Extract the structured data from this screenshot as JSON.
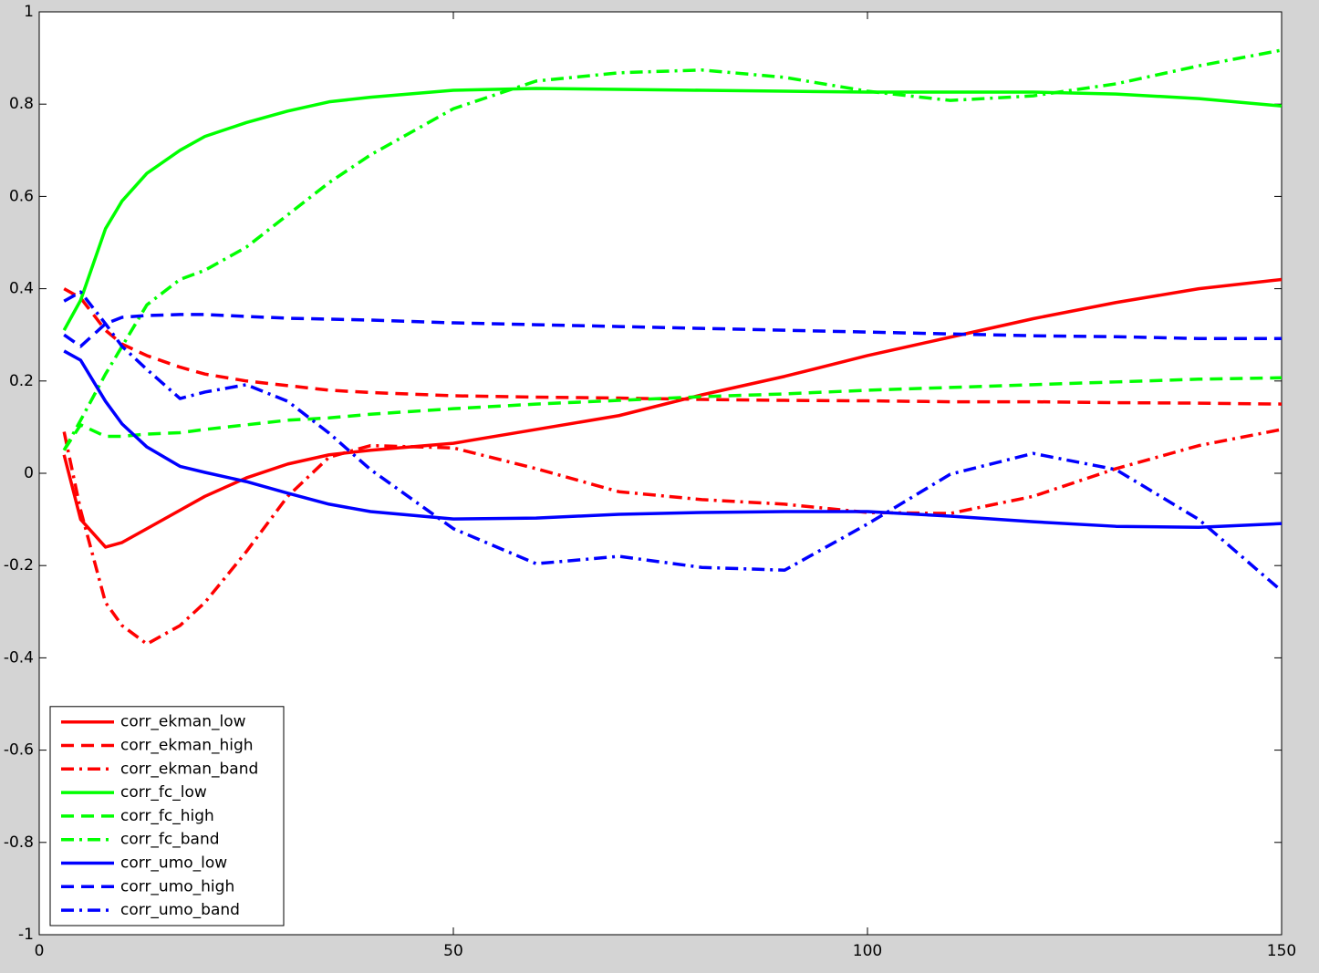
{
  "chart_data": {
    "type": "line",
    "x": [
      3,
      5,
      8,
      10,
      13,
      17,
      20,
      25,
      30,
      35,
      40,
      50,
      60,
      70,
      80,
      90,
      100,
      110,
      120,
      130,
      140,
      150
    ],
    "xlim": [
      0,
      150
    ],
    "xticks": [
      0,
      50,
      100,
      150
    ],
    "ylim": [
      -1,
      1
    ],
    "yticks": [
      -1,
      -0.8,
      -0.6,
      -0.4,
      -0.2,
      0,
      0.2,
      0.4,
      0.6,
      0.8,
      1
    ],
    "legend": "lower left",
    "series": [
      {
        "name": "corr_ekman_low",
        "color": "#ff0000",
        "linestyle": "solid",
        "values": [
          0.04,
          -0.1,
          -0.16,
          -0.15,
          -0.12,
          -0.08,
          -0.05,
          -0.01,
          0.02,
          0.04,
          0.05,
          0.065,
          0.095,
          0.125,
          0.17,
          0.21,
          0.255,
          0.295,
          0.335,
          0.37,
          0.4,
          0.42
        ]
      },
      {
        "name": "corr_ekman_high",
        "color": "#ff0000",
        "linestyle": "dashed",
        "values": [
          0.4,
          0.38,
          0.31,
          0.28,
          0.255,
          0.23,
          0.215,
          0.2,
          0.19,
          0.18,
          0.175,
          0.168,
          0.165,
          0.163,
          0.16,
          0.158,
          0.157,
          0.155,
          0.155,
          0.153,
          0.152,
          0.15
        ]
      },
      {
        "name": "corr_ekman_band",
        "color": "#ff0000",
        "linestyle": "dashdot",
        "values": [
          0.09,
          -0.08,
          -0.28,
          -0.33,
          -0.37,
          -0.33,
          -0.28,
          -0.17,
          -0.05,
          0.035,
          0.06,
          0.055,
          0.01,
          -0.04,
          -0.057,
          -0.067,
          -0.085,
          -0.087,
          -0.05,
          0.01,
          0.06,
          0.095
        ]
      },
      {
        "name": "corr_fc_low",
        "color": "#00ff00",
        "linestyle": "solid",
        "values": [
          0.31,
          0.375,
          0.53,
          0.59,
          0.65,
          0.7,
          0.73,
          0.76,
          0.785,
          0.805,
          0.815,
          0.83,
          0.834,
          0.832,
          0.83,
          0.828,
          0.826,
          0.826,
          0.826,
          0.822,
          0.812,
          0.796
        ]
      },
      {
        "name": "corr_fc_high",
        "color": "#00ff00",
        "linestyle": "dashed",
        "values": [
          0.05,
          0.105,
          0.08,
          0.08,
          0.085,
          0.088,
          0.095,
          0.105,
          0.115,
          0.12,
          0.128,
          0.14,
          0.15,
          0.158,
          0.166,
          0.172,
          0.18,
          0.186,
          0.192,
          0.198,
          0.204,
          0.207
        ]
      },
      {
        "name": "corr_fc_band",
        "color": "#00ff00",
        "linestyle": "dashdot",
        "values": [
          0.05,
          0.115,
          0.215,
          0.275,
          0.365,
          0.42,
          0.44,
          0.49,
          0.56,
          0.63,
          0.69,
          0.79,
          0.85,
          0.868,
          0.874,
          0.858,
          0.828,
          0.808,
          0.818,
          0.844,
          0.883,
          0.917
        ]
      },
      {
        "name": "corr_umo_low",
        "color": "#0000ff",
        "linestyle": "solid",
        "values": [
          0.265,
          0.245,
          0.156,
          0.107,
          0.057,
          0.015,
          0.002,
          -0.018,
          -0.043,
          -0.067,
          -0.083,
          -0.099,
          -0.097,
          -0.089,
          -0.085,
          -0.083,
          -0.083,
          -0.093,
          -0.105,
          -0.115,
          -0.117,
          -0.109
        ]
      },
      {
        "name": "corr_umo_high",
        "color": "#0000ff",
        "linestyle": "dashed",
        "values": [
          0.3,
          0.275,
          0.324,
          0.338,
          0.342,
          0.344,
          0.344,
          0.34,
          0.336,
          0.334,
          0.332,
          0.326,
          0.322,
          0.318,
          0.314,
          0.31,
          0.306,
          0.302,
          0.298,
          0.296,
          0.292,
          0.292
        ]
      },
      {
        "name": "corr_umo_band",
        "color": "#0000ff",
        "linestyle": "dashdot",
        "values": [
          0.373,
          0.393,
          0.324,
          0.275,
          0.225,
          0.162,
          0.176,
          0.192,
          0.156,
          0.087,
          0.008,
          -0.12,
          -0.196,
          -0.18,
          -0.204,
          -0.21,
          -0.11,
          -0.002,
          0.043,
          0.008,
          -0.1,
          -0.255
        ]
      }
    ]
  }
}
